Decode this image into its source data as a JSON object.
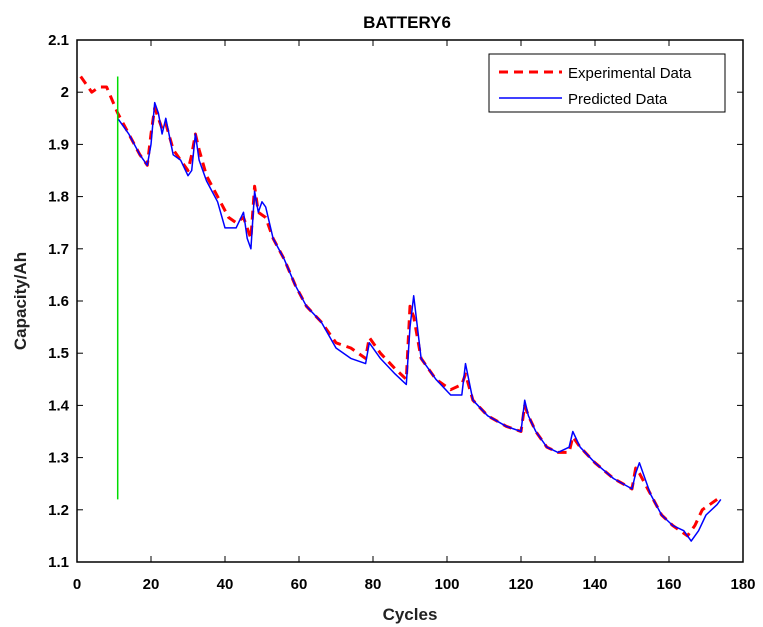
{
  "chart_data": {
    "type": "line",
    "title": "BATTERY6",
    "xlabel": "Cycles",
    "ylabel": "Capacity/Ah",
    "xlim": [
      0,
      180
    ],
    "ylim": [
      1.1,
      2.1
    ],
    "xticks": [
      0,
      20,
      40,
      60,
      80,
      100,
      120,
      140,
      160,
      180
    ],
    "yticks": [
      1.1,
      1.2,
      1.3,
      1.4,
      1.5,
      1.6,
      1.7,
      1.8,
      1.9,
      2,
      2.1
    ],
    "xtick_labels": [
      "0",
      "20",
      "40",
      "60",
      "80",
      "100",
      "120",
      "140",
      "160",
      "180"
    ],
    "ytick_labels": [
      "1.1",
      "1.2",
      "1.3",
      "1.4",
      "1.5",
      "1.6",
      "1.7",
      "1.8",
      "1.9",
      "2",
      "2.1"
    ],
    "legend_position": "top-right",
    "grid": false,
    "series": [
      {
        "name": "Experimental Data",
        "color": "#ff0000",
        "style": "dashed",
        "x": [
          1,
          4,
          6,
          8,
          11,
          14,
          17,
          19,
          20,
          21,
          22,
          23,
          24,
          26,
          28,
          30,
          31,
          32,
          33,
          35,
          38,
          41,
          43,
          45,
          47,
          48,
          49,
          51,
          53,
          56,
          59,
          62,
          66,
          70,
          74,
          78,
          79,
          82,
          86,
          89,
          90,
          91,
          93,
          97,
          101,
          104,
          105,
          107,
          111,
          116,
          120,
          121,
          122,
          124,
          127,
          130,
          133,
          134,
          136,
          140,
          145,
          150,
          151,
          152,
          155,
          158,
          161,
          165,
          167,
          169,
          171,
          173
        ],
        "y": [
          2.03,
          2.0,
          2.01,
          2.01,
          1.96,
          1.92,
          1.88,
          1.86,
          1.92,
          1.97,
          1.95,
          1.93,
          1.94,
          1.89,
          1.87,
          1.85,
          1.88,
          1.92,
          1.89,
          1.84,
          1.8,
          1.76,
          1.75,
          1.76,
          1.72,
          1.82,
          1.77,
          1.76,
          1.72,
          1.68,
          1.63,
          1.59,
          1.56,
          1.52,
          1.51,
          1.49,
          1.53,
          1.5,
          1.47,
          1.45,
          1.59,
          1.57,
          1.49,
          1.45,
          1.43,
          1.44,
          1.46,
          1.41,
          1.38,
          1.36,
          1.35,
          1.4,
          1.38,
          1.35,
          1.32,
          1.31,
          1.31,
          1.34,
          1.32,
          1.29,
          1.26,
          1.24,
          1.28,
          1.27,
          1.23,
          1.19,
          1.17,
          1.15,
          1.17,
          1.2,
          1.21,
          1.22
        ]
      },
      {
        "name": "Predicted Data",
        "color": "#0000ff",
        "style": "solid",
        "x": [
          11,
          14,
          17,
          19,
          20,
          21,
          22,
          23,
          24,
          26,
          28,
          30,
          31,
          32,
          33,
          35,
          38,
          40,
          43,
          45,
          46,
          47,
          48,
          49,
          50,
          51,
          53,
          56,
          59,
          62,
          66,
          70,
          74,
          78,
          79,
          82,
          86,
          89,
          90,
          91,
          93,
          97,
          101,
          104,
          105,
          107,
          111,
          116,
          120,
          121,
          122,
          124,
          127,
          130,
          133,
          134,
          136,
          140,
          145,
          150,
          151,
          152,
          155,
          158,
          161,
          164,
          166,
          168,
          170,
          173,
          174
        ],
        "y": [
          1.95,
          1.92,
          1.88,
          1.86,
          1.9,
          1.98,
          1.96,
          1.92,
          1.95,
          1.88,
          1.87,
          1.84,
          1.85,
          1.92,
          1.87,
          1.83,
          1.79,
          1.74,
          1.74,
          1.77,
          1.72,
          1.7,
          1.81,
          1.77,
          1.79,
          1.78,
          1.72,
          1.68,
          1.63,
          1.59,
          1.56,
          1.51,
          1.49,
          1.48,
          1.52,
          1.49,
          1.46,
          1.44,
          1.55,
          1.61,
          1.49,
          1.45,
          1.42,
          1.42,
          1.48,
          1.41,
          1.38,
          1.36,
          1.35,
          1.41,
          1.38,
          1.35,
          1.32,
          1.31,
          1.32,
          1.35,
          1.32,
          1.29,
          1.26,
          1.24,
          1.27,
          1.29,
          1.23,
          1.19,
          1.17,
          1.16,
          1.14,
          1.16,
          1.19,
          1.21,
          1.22
        ]
      },
      {
        "name": "",
        "color": "#00dd00",
        "style": "solid",
        "x": [
          11,
          11
        ],
        "y": [
          1.22,
          2.03
        ]
      }
    ]
  }
}
